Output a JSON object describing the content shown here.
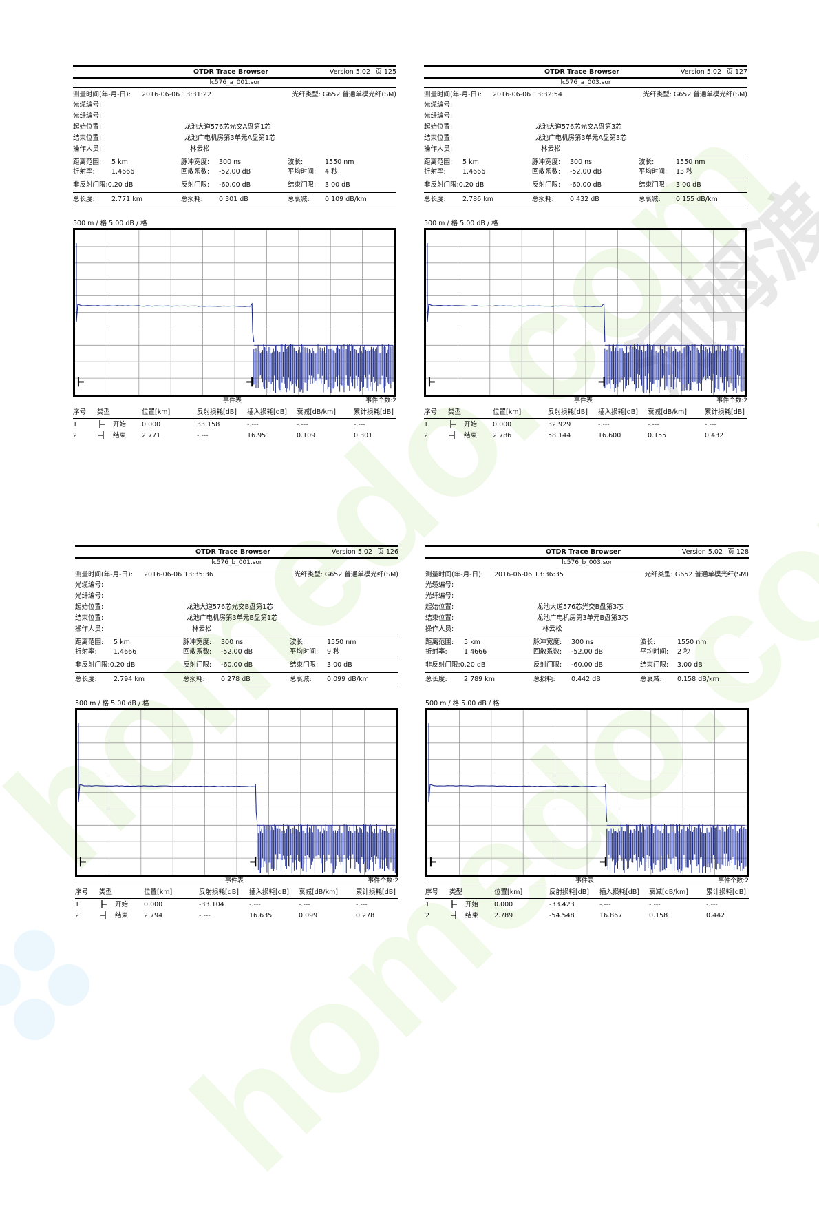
{
  "app_title": "OTDR Trace Browser",
  "version": "Version 5.02",
  "watermarks": [
    "homedo.com",
    "homedo.com",
    "河姆渡"
  ],
  "labels": {
    "time": "测量时间(年-月-日):",
    "cable": "光缆编号:",
    "fiber_no": "光纤编号:",
    "start": "起始位置:",
    "end": "结束位置:",
    "operator": "操作人员:",
    "fiber_type_prefix": "光纤类型:",
    "range": "距离范围:",
    "ior": "折射率:",
    "pulse": "脉冲宽度:",
    "backscatter": "回散系数:",
    "wavelength": "波长:",
    "avg_time": "平均时间:",
    "nonrefl": "非反射门限:",
    "refl": "反射门限:",
    "end_thr": "结束门限:",
    "total_len": "总长度:",
    "total_loss": "总损耗:",
    "total_atten": "总衰减:",
    "scale": "500 m / 格     5.00 dB / 格",
    "event_table": "事件表",
    "h_no": "序号",
    "h_type": "类型",
    "h_pos": "位置[km]",
    "h_refl": "反射损耗[dB]",
    "h_ins": "插入损耗[dB]",
    "h_att": "衰减[dB/km]",
    "h_cum": "累计损耗[dB]"
  },
  "panels": [
    {
      "page": "页 125",
      "file": "lc576_a_001.sor",
      "time": "2016-06-06  13:31:22",
      "fiber_type": "G652 普通单模光纤(SM)",
      "start": "龙池大道576芯光交A盘第1芯",
      "end": "龙池广电机房第3单元A盘第1芯",
      "operator": "林云松",
      "range": "5 km",
      "ior": "1.4666",
      "pulse": "300 ns",
      "backscatter": "-52.00 dB",
      "wavelength": "1550 nm",
      "avg_time": "4 秒",
      "nonrefl": "0.20 dB",
      "refl": "-60.00 dB",
      "end_thr": "3.00 dB",
      "total_len": "2.771 km",
      "total_loss": "0.301 dB",
      "total_atten": "0.109 dB/km",
      "event_count": "事件个数:2",
      "events": [
        {
          "no": "1",
          "type": "开始",
          "pos": "0.000",
          "refl": "33.158",
          "ins": "-.---",
          "att": "-.---",
          "cum": "-.---"
        },
        {
          "no": "2",
          "type": "结束",
          "pos": "2.771",
          "refl": "-.---",
          "ins": "16.951",
          "att": "0.109",
          "cum": "0.301"
        }
      ]
    },
    {
      "page": "页 127",
      "file": "lc576_a_003.sor",
      "time": "2016-06-06  13:32:54",
      "fiber_type": "G652 普通单模光纤(SM)",
      "start": "龙池大道576芯光交A盘第3芯",
      "end": "龙池广电机房第3单元A盘第3芯",
      "operator": "林云松",
      "range": "5 km",
      "ior": "1.4666",
      "pulse": "300 ns",
      "backscatter": "-52.00 dB",
      "wavelength": "1550 nm",
      "avg_time": "13 秒",
      "nonrefl": "0.20 dB",
      "refl": "-60.00 dB",
      "end_thr": "3.00 dB",
      "total_len": "2.786 km",
      "total_loss": "0.432 dB",
      "total_atten": "0.155 dB/km",
      "event_count": "事件个数:2",
      "events": [
        {
          "no": "1",
          "type": "开始",
          "pos": "0.000",
          "refl": "32.929",
          "ins": "-.---",
          "att": "-.---",
          "cum": "-.---"
        },
        {
          "no": "2",
          "type": "结束",
          "pos": "2.786",
          "refl": "58.144",
          "ins": "16.600",
          "att": "0.155",
          "cum": "0.432"
        }
      ]
    },
    {
      "page": "页 126",
      "file": "lc576_b_001.sor",
      "time": "2016-06-06  13:35:36",
      "fiber_type": "G652 普通单模光纤(SM)",
      "start": "龙池大道576芯光交B盘第1芯",
      "end": "龙池广电机房第3单元B盘第1芯",
      "operator": "林云松",
      "range": "5 km",
      "ior": "1.4666",
      "pulse": "300 ns",
      "backscatter": "-52.00 dB",
      "wavelength": "1550 nm",
      "avg_time": "9 秒",
      "nonrefl": "0.20 dB",
      "refl": "-60.00 dB",
      "end_thr": "3.00 dB",
      "total_len": "2.794 km",
      "total_loss": "0.278 dB",
      "total_atten": "0.099 dB/km",
      "event_count": "事件个数:2",
      "events": [
        {
          "no": "1",
          "type": "开始",
          "pos": "0.000",
          "refl": "-33.104",
          "ins": "-.---",
          "att": "-.---",
          "cum": "-.---"
        },
        {
          "no": "2",
          "type": "结束",
          "pos": "2.794",
          "refl": "-.---",
          "ins": "16.635",
          "att": "0.099",
          "cum": "0.278"
        }
      ]
    },
    {
      "page": "页 128",
      "file": "lc576_b_003.sor",
      "time": "2016-06-06  13:36:35",
      "fiber_type": "G652 普通单模光纤(SM)",
      "start": "龙池大道576芯光交B盘第3芯",
      "end": "龙池广电机房第3单元B盘第3芯",
      "operator": "林云松",
      "range": "5 km",
      "ior": "1.4666",
      "pulse": "300 ns",
      "backscatter": "-52.00 dB",
      "wavelength": "1550 nm",
      "avg_time": "2 秒",
      "nonrefl": "0.20 dB",
      "refl": "-60.00 dB",
      "end_thr": "3.00 dB",
      "total_len": "2.789 km",
      "total_loss": "0.442 dB",
      "total_atten": "0.158 dB/km",
      "event_count": "事件个数:2",
      "events": [
        {
          "no": "1",
          "type": "开始",
          "pos": "0.000",
          "refl": "-33.423",
          "ins": "-.---",
          "att": "-.---",
          "cum": "-.---"
        },
        {
          "no": "2",
          "type": "结束",
          "pos": "2.789",
          "refl": "-54.548",
          "ins": "16.867",
          "att": "0.158",
          "cum": "0.442"
        }
      ]
    }
  ],
  "chart_data": [
    {
      "type": "line",
      "title": "lc576_a_001.sor",
      "x_unit": "km",
      "xlim": [
        0,
        5
      ],
      "x_grid_step": 0.5,
      "y_grid_step_db": 5,
      "grid": true,
      "series": [
        {
          "color": "#1c2a8c",
          "end_km": 2.771,
          "noise_start_km": 2.8
        }
      ]
    },
    {
      "type": "line",
      "title": "lc576_a_003.sor",
      "x_unit": "km",
      "xlim": [
        0,
        5
      ],
      "x_grid_step": 0.5,
      "y_grid_step_db": 5,
      "grid": true,
      "series": [
        {
          "color": "#1c2a8c",
          "end_km": 2.786,
          "noise_start_km": 2.8
        }
      ]
    },
    {
      "type": "line",
      "title": "lc576_b_001.sor",
      "x_unit": "km",
      "xlim": [
        0,
        5
      ],
      "x_grid_step": 0.5,
      "y_grid_step_db": 5,
      "grid": true,
      "series": [
        {
          "color": "#1c2a8c",
          "end_km": 2.794,
          "noise_start_km": 2.82
        }
      ]
    },
    {
      "type": "line",
      "title": "lc576_b_003.sor",
      "x_unit": "km",
      "xlim": [
        0,
        5
      ],
      "x_grid_step": 0.5,
      "y_grid_step_db": 5,
      "grid": true,
      "series": [
        {
          "color": "#1c2a8c",
          "end_km": 2.789,
          "noise_start_km": 2.81
        }
      ]
    }
  ]
}
